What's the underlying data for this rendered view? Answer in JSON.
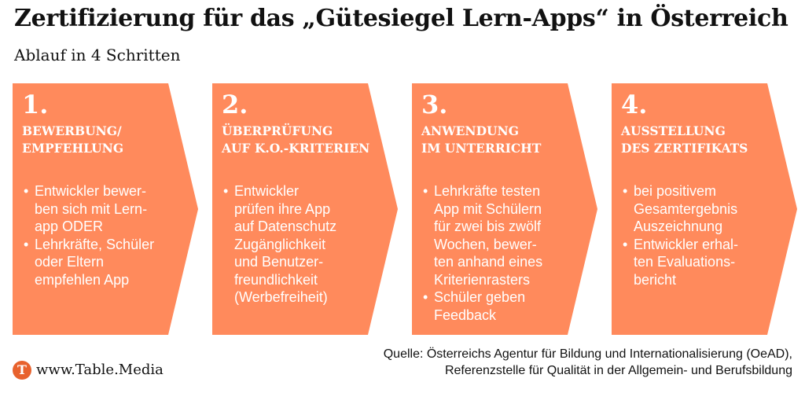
{
  "header": {
    "title": "Zertifizierung für das „Gütesiegel Lern-Apps“ in Österreich",
    "subtitle": "Ablauf in 4 Schritten"
  },
  "colors": {
    "step_fill": "#ff8a5c",
    "text_on_fill": "#ffffff",
    "logo": "#e8622d"
  },
  "steps": [
    {
      "number": "1.",
      "heading": "BEWERBUNG/\nEMPFEHLUNG",
      "items": [
        "Entwickler bewer-\nben sich mit Lern-\napp ODER",
        "Lehrkräfte, Schüler\noder Eltern\nempfehlen App"
      ]
    },
    {
      "number": "2.",
      "heading": "ÜBERPRÜFUNG\nAUF K.O.-KRITERIEN",
      "items": [
        "Entwickler\nprüfen ihre App\nauf Datenschutz\nZugänglichkeit\nund Benutzer-\nfreundlichkeit\n(Werbefreiheit)"
      ]
    },
    {
      "number": "3.",
      "heading": "ANWENDUNG\nIM UNTERRICHT",
      "items": [
        "Lehrkräfte testen\nApp mit Schülern\nfür zwei bis zwölf\nWochen, bewer-\nten anhand eines\nKriterienrasters",
        "Schüler geben\nFeedback"
      ]
    },
    {
      "number": "4.",
      "heading": "AUSSTELLUNG\nDES ZERTIFIKATS",
      "items": [
        "bei positivem\nGesamtergebnis\nAuszeichnung",
        "Entwickler erhal-\nten Evaluations-\nbericht"
      ]
    }
  ],
  "source": {
    "line1": "Quelle: Österreichs Agentur für Bildung und Internationalisierung (OeAD),",
    "line2": "Referenzstelle für Qualität in der Allgemein- und Berufsbildung"
  },
  "logo": {
    "letter": "T",
    "text": "www.Table.Media"
  }
}
